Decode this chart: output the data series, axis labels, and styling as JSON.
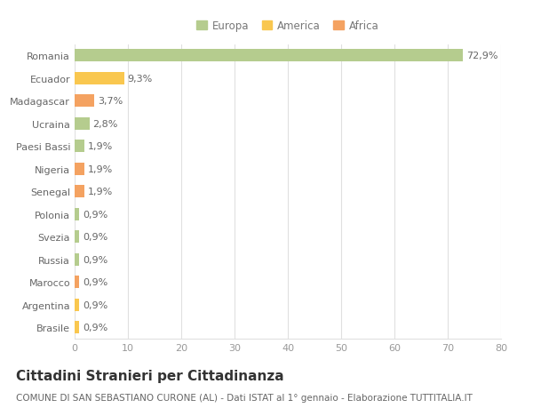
{
  "categories": [
    "Romania",
    "Ecuador",
    "Madagascar",
    "Ucraina",
    "Paesi Bassi",
    "Nigeria",
    "Senegal",
    "Polonia",
    "Svezia",
    "Russia",
    "Marocco",
    "Argentina",
    "Brasile"
  ],
  "values": [
    72.9,
    9.3,
    3.7,
    2.8,
    1.9,
    1.9,
    1.9,
    0.9,
    0.9,
    0.9,
    0.9,
    0.9,
    0.9
  ],
  "labels": [
    "72,9%",
    "9,3%",
    "3,7%",
    "2,8%",
    "1,9%",
    "1,9%",
    "1,9%",
    "0,9%",
    "0,9%",
    "0,9%",
    "0,9%",
    "0,9%",
    "0,9%"
  ],
  "colors": [
    "#b5cc8e",
    "#f9c74f",
    "#f4a261",
    "#b5cc8e",
    "#b5cc8e",
    "#f4a261",
    "#f4a261",
    "#b5cc8e",
    "#b5cc8e",
    "#b5cc8e",
    "#f4a261",
    "#f9c74f",
    "#f9c74f"
  ],
  "legend_labels": [
    "Europa",
    "America",
    "Africa"
  ],
  "legend_colors": [
    "#b5cc8e",
    "#f9c74f",
    "#f4a261"
  ],
  "title": "Cittadini Stranieri per Cittadinanza",
  "subtitle": "COMUNE DI SAN SEBASTIANO CURONE (AL) - Dati ISTAT al 1° gennaio - Elaborazione TUTTITALIA.IT",
  "xlim": [
    0,
    80
  ],
  "xticks": [
    0,
    10,
    20,
    30,
    40,
    50,
    60,
    70,
    80
  ],
  "bg_color": "#ffffff",
  "grid_color": "#e0e0e0",
  "bar_height": 0.55,
  "label_fontsize": 8,
  "tick_fontsize": 8,
  "title_fontsize": 11,
  "subtitle_fontsize": 7.5
}
